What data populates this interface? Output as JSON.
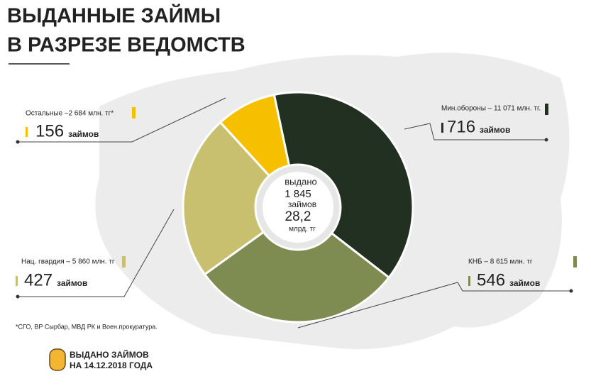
{
  "chart_data": {
    "type": "donut",
    "title": [
      "ВЫДАННЫЕ ЗАЙМЫ",
      "В РАЗРЕЗЕ ВЕДОМСТВ"
    ],
    "categories": [
      "Мин.обороны – 11 071 млн. тг.",
      "КНБ – 8 615 млн. тг",
      "Нац. гвардия – 5 860 млн. тг",
      "Остальные  –2 684 млн. тг*"
    ],
    "values": [
      716,
      546,
      427,
      156
    ],
    "unit_label": "займов",
    "colors": [
      "#223022",
      "#7e8c52",
      "#c8c06e",
      "#f6c000"
    ],
    "center": {
      "label": "выдано",
      "count": "1 845",
      "count_unit": "займов",
      "amount": "28,2",
      "amount_unit": "млрд. тг"
    },
    "footnote": "*СГО, ВР Сырбар, МВД РК и  Воен.прокуратура.",
    "badge": [
      "ВЫДАНО ЗАЙМОВ",
      "НА 14.12.2018 ГОДА"
    ]
  }
}
